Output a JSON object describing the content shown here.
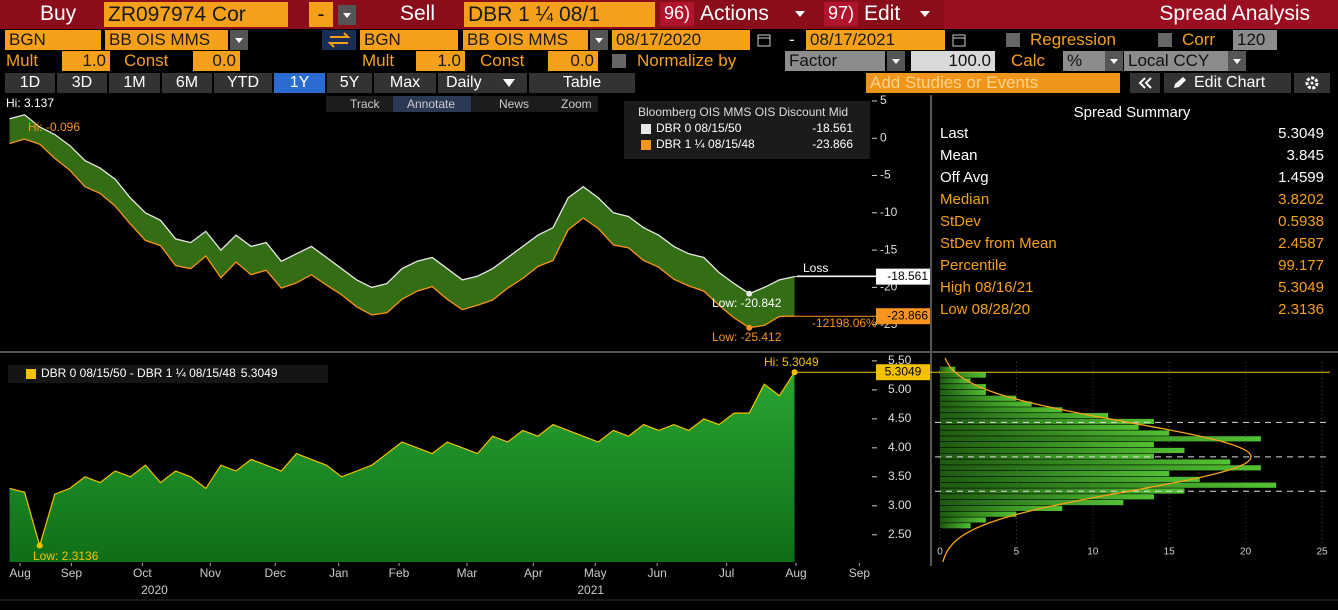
{
  "toolbar": {
    "buy": "Buy",
    "buy_ticker": "ZR097974 Cor",
    "operator": "-",
    "sell": "Sell",
    "sell_ticker": "DBR 1 ¼ 08/1",
    "actions_num": "96)",
    "actions": "Actions",
    "edit_num": "97)",
    "edit": "Edit",
    "title": "Spread Analysis"
  },
  "row2": {
    "source1": "BGN",
    "curve1": "BB OIS MMS",
    "source2": "BGN",
    "curve2": "BB OIS MMS",
    "start": "08/17/2020",
    "dash": "-",
    "end": "08/17/2021",
    "regression": "Regression",
    "corr": "Corr",
    "corr_window": "120"
  },
  "row3": {
    "mult1_label": "Mult",
    "mult1": "1.0",
    "const1_label": "Const",
    "const1": "0.0",
    "mult2_label": "Mult",
    "mult2": "1.0",
    "const2_label": "Const",
    "const2": "0.0",
    "normalize": "Normalize by",
    "factor": "Factor",
    "factor_value": "100.0",
    "calc": "Calc",
    "calc_value": "%",
    "ccy": "Local CCY"
  },
  "tabs": [
    "1D",
    "3D",
    "1M",
    "6M",
    "YTD",
    "1Y",
    "5Y",
    "Max"
  ],
  "selected_tab": 5,
  "frequency": "Daily",
  "table": "Table",
  "studies": "Add Studies or Events",
  "edit_chart": "Edit Chart",
  "chart_tools": [
    "Track",
    "Annotate",
    "News",
    "Zoom"
  ],
  "selected_tool": 1,
  "summary": {
    "title": "Spread Summary",
    "rows": [
      [
        "Last",
        5.3049
      ],
      [
        "Mean",
        3.845
      ],
      [
        "Off Avg",
        1.4599
      ],
      [
        "Median",
        3.8202
      ],
      [
        "StDev",
        0.5938
      ],
      [
        "StDev from Mean",
        2.4587
      ],
      [
        "Percentile",
        99.177
      ],
      [
        "High 08/16/21",
        5.3049
      ],
      [
        "Low 08/28/20",
        2.3136
      ]
    ]
  },
  "chart_data": [
    {
      "type": "line",
      "legend_title": "Bloomberg OIS MMS OIS Discount Mid",
      "series": [
        {
          "name": "DBR 0 08/15/50",
          "color": "#e8e8e8",
          "values": [
            2.6,
            3.137,
            1.5,
            0.5,
            -1,
            -3,
            -4,
            -5.5,
            -8,
            -10,
            -11,
            -13.5,
            -14,
            -12.5,
            -15,
            -13,
            -14.5,
            -14,
            -16.5,
            -15.5,
            -14.5,
            -16,
            -17.5,
            -19,
            -20,
            -19.5,
            -17.5,
            -16.5,
            -16,
            -17.5,
            -19,
            -18.5,
            -17.5,
            -16,
            -14.5,
            -13,
            -12,
            -8,
            -6.5,
            -8,
            -10,
            -10.5,
            -12,
            -13,
            -14.5,
            -15.5,
            -16,
            -18,
            -19.5,
            -20.842,
            -20,
            -19,
            -18.561
          ]
        },
        {
          "name": "DBR 1 ¼ 08/15/48",
          "color": "#f7941d",
          "values": [
            -0.7,
            -0.096,
            -0.8,
            -2.7,
            -4.3,
            -6.5,
            -7.4,
            -9.1,
            -11.5,
            -13.7,
            -14.4,
            -17.1,
            -17.5,
            -15.8,
            -18.7,
            -16.6,
            -18.3,
            -17.7,
            -20.1,
            -19.4,
            -18.3,
            -19.7,
            -21,
            -22.6,
            -23.7,
            -23.4,
            -21.6,
            -20.5,
            -19.9,
            -21.6,
            -23,
            -22.4,
            -21.7,
            -20.1,
            -18.8,
            -17.2,
            -16.4,
            -12.3,
            -10.7,
            -12.1,
            -14.3,
            -14.7,
            -16.4,
            -17.3,
            -18.9,
            -19.8,
            -20.5,
            -22.4,
            -24.1,
            -25.412,
            -25.1,
            -23.9,
            -23.866
          ]
        }
      ],
      "fill_color": "#336d14",
      "xlim": [
        -0.3,
        57
      ],
      "ylim": [
        -28.4,
        5.53
      ],
      "yticks": [
        5,
        0,
        -5,
        -10,
        -15,
        -20,
        -25
      ],
      "annotations": [
        "Hi: 3.137",
        "Hi: -0.096",
        "Low: -20.842",
        "Low: -25.412",
        "Loss",
        "-12198.06%"
      ]
    },
    {
      "type": "area",
      "series": [
        {
          "name": "DBR 0 08/15/50 - DBR 1 ¼ 08/15/48",
          "color": "#f2c200",
          "values": [
            3.3,
            3.233,
            2.3136,
            3.2,
            3.3,
            3.5,
            3.4,
            3.6,
            3.5,
            3.7,
            3.4,
            3.6,
            3.5,
            3.3,
            3.7,
            3.6,
            3.8,
            3.7,
            3.6,
            3.9,
            3.8,
            3.7,
            3.5,
            3.6,
            3.7,
            3.9,
            4.1,
            4.0,
            3.9,
            4.1,
            4.0,
            3.9,
            4.2,
            4.1,
            4.3,
            4.2,
            4.4,
            4.3,
            4.2,
            4.1,
            4.3,
            4.2,
            4.4,
            4.3,
            4.4,
            4.3,
            4.5,
            4.4,
            4.6,
            4.6,
            5.1,
            4.9,
            5.3049
          ]
        }
      ],
      "fill_color": "#1f8f25",
      "xlim": [
        -0.3,
        57
      ],
      "xticks": [
        {
          "value": 0.7,
          "label": "Aug"
        },
        {
          "value": 4.1,
          "label": "Sep"
        },
        {
          "value": 8.8,
          "label": "Oct"
        },
        {
          "value": 13.3,
          "label": "Nov"
        },
        {
          "value": 17.6,
          "label": "Dec"
        },
        {
          "value": 21.8,
          "label": "Jan"
        },
        {
          "value": 25.8,
          "label": "Feb"
        },
        {
          "value": 30.3,
          "label": "Mar"
        },
        {
          "value": 34.7,
          "label": "Apr"
        },
        {
          "value": 38.8,
          "label": "May"
        },
        {
          "value": 42.9,
          "label": "Jun"
        },
        {
          "value": 47.5,
          "label": "Jul"
        },
        {
          "value": 52.1,
          "label": "Aug"
        },
        {
          "value": 56.3,
          "label": "Sep"
        }
      ],
      "x_group_labels": [
        {
          "value": 9.6,
          "label": "2020"
        },
        {
          "value": 38.5,
          "label": "2021"
        }
      ],
      "ylim": [
        2.03,
        5.55
      ],
      "yticks": [
        {
          "value": 2.5,
          "label": "2.50"
        },
        {
          "value": 3,
          "label": "3.00"
        },
        {
          "value": 3.5,
          "label": "3.50"
        },
        {
          "value": 4,
          "label": "4.00"
        },
        {
          "value": 4.5,
          "label": "4.50"
        },
        {
          "value": 5,
          "label": "5.00"
        },
        {
          "value": 5.5,
          "label": "5.50"
        }
      ],
      "annotations": [
        "Hi: 5.3049",
        "Low: 2.3136"
      ]
    },
    {
      "type": "histogram",
      "orientation": "horizontal",
      "bins": [
        2.6,
        2.7,
        2.8,
        2.9,
        3.0,
        3.1,
        3.2,
        3.3,
        3.4,
        3.5,
        3.6,
        3.7,
        3.8,
        3.9,
        4.0,
        4.1,
        4.2,
        4.3,
        4.4,
        4.5,
        4.6,
        4.7,
        4.8,
        4.9,
        5.0,
        5.1,
        5.2,
        5.3,
        5.4
      ],
      "counts": [
        2,
        3,
        5,
        8,
        12,
        14,
        16,
        22,
        17,
        15,
        21,
        19,
        14,
        16,
        14,
        21,
        15,
        13,
        14,
        11,
        8,
        6,
        5,
        3,
        3,
        2,
        3,
        1
      ],
      "color": "#3fa626",
      "curve_color": "#f7a21b",
      "xlim": [
        0,
        25
      ],
      "xticks": [
        0,
        5,
        10,
        15,
        20,
        25
      ],
      "ylim": [
        2.03,
        5.55
      ]
    }
  ]
}
